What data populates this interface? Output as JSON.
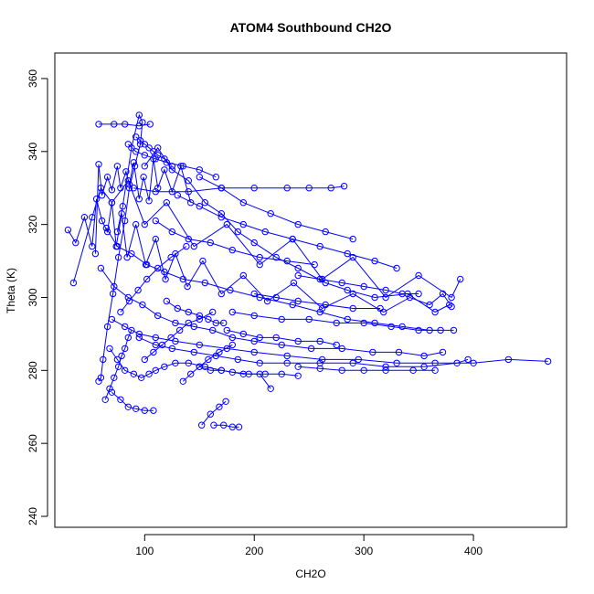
{
  "chart_data": {
    "type": "line",
    "title": "ATOM4 Southbound CH2O",
    "xlabel": "CH2O",
    "ylabel": "Theta (K)",
    "xlim": [
      18,
      485
    ],
    "ylim": [
      237,
      367
    ],
    "x_ticks": [
      100,
      200,
      300,
      400
    ],
    "y_ticks": [
      240,
      260,
      280,
      300,
      320,
      340,
      360
    ],
    "x_tick_labels": [
      "100",
      "200",
      "300",
      "400"
    ],
    "y_tick_labels": [
      "240",
      "260",
      "280",
      "300",
      "320",
      "340",
      "360"
    ],
    "grid": false,
    "legend": "none",
    "series_color": "#0000ff",
    "marker": "open-circle",
    "series": [
      {
        "x": [
          30,
          37,
          45,
          52,
          56,
          61,
          66,
          70,
          74,
          79,
          84,
          92,
          101,
          110,
          119,
          128,
          139,
          153,
          170,
          190,
          212,
          236,
          262,
          290,
          318,
          342,
          360,
          372,
          380
        ],
        "y": [
          318.5,
          315,
          322,
          314,
          327,
          321,
          318,
          326,
          314,
          323,
          311,
          320,
          309,
          316,
          305,
          312,
          303,
          310,
          301,
          306,
          299,
          304,
          297,
          301,
          296,
          300,
          298,
          301,
          297.5
        ]
      },
      {
        "x": [
          35,
          52,
          60,
          70,
          85,
          100,
          120,
          145,
          175,
          205,
          235,
          262,
          290,
          320,
          350,
          380,
          388
        ],
        "y": [
          304,
          322,
          330,
          326,
          332,
          320,
          326,
          314,
          320,
          309,
          316,
          305,
          311,
          300,
          306,
          300,
          305
        ]
      },
      {
        "x": [
          55,
          58,
          61,
          66,
          70,
          75,
          78,
          83,
          86,
          90,
          95,
          99,
          104,
          108,
          112,
          118,
          125,
          133,
          142
        ],
        "y": [
          312,
          336.5,
          328,
          333,
          329.5,
          336,
          330,
          334.5,
          331,
          337,
          327,
          333,
          326.5,
          338,
          330,
          335,
          329,
          336,
          326
        ]
      },
      {
        "x": [
          58,
          72,
          82,
          95,
          105
        ],
        "y": [
          347.5,
          347.5,
          347.5,
          347,
          347.5
        ]
      },
      {
        "x": [
          75,
          80,
          88,
          95,
          98,
          96,
          91,
          86,
          82,
          76,
          71,
          66,
          62,
          60,
          58
        ],
        "y": [
          318,
          325,
          341,
          350,
          348,
          342,
          336,
          330,
          321,
          311,
          301,
          292,
          283,
          278,
          277
        ]
      },
      {
        "x": [
          100,
          112,
          125,
          140,
          155,
          170,
          185,
          200,
          220,
          240,
          265,
          285,
          310,
          340,
          365,
          378
        ],
        "y": [
          336,
          341,
          335,
          332,
          326,
          323,
          318,
          315,
          311,
          308,
          304,
          302,
          300,
          301,
          296,
          298
        ]
      },
      {
        "x": [
          90,
          110,
          140,
          170,
          200,
          230,
          250,
          270,
          282
        ],
        "y": [
          330,
          329,
          329,
          330,
          330,
          330,
          330,
          330,
          330.5
        ]
      },
      {
        "x": [
          65,
          75,
          88,
          102,
          118,
          135,
          155,
          178,
          205,
          235,
          260,
          285,
          310,
          335,
          360,
          382
        ],
        "y": [
          319,
          314,
          312,
          309,
          307,
          305,
          304,
          302,
          300,
          298,
          296,
          294,
          293,
          292,
          291,
          291
        ]
      },
      {
        "x": [
          60,
          72,
          85,
          98,
          112,
          128,
          145,
          162,
          180,
          200,
          225,
          252,
          280,
          308,
          332,
          355,
          372
        ],
        "y": [
          308,
          303,
          300,
          298,
          295,
          293,
          292,
          291,
          289,
          288,
          287,
          286,
          286,
          285,
          285,
          284,
          285
        ]
      },
      {
        "x": [
          70,
          82,
          95,
          110,
          128,
          150,
          175,
          200,
          230,
          262,
          295,
          330,
          365,
          400,
          432,
          468
        ],
        "y": [
          294,
          292,
          290,
          289,
          288,
          287,
          286,
          285,
          284,
          283,
          283,
          282,
          282,
          282,
          283,
          282.5
        ]
      },
      {
        "x": [
          95,
          110,
          125,
          145,
          165,
          185,
          205,
          230,
          260,
          290,
          320,
          355,
          385,
          395
        ],
        "y": [
          289,
          287,
          286,
          285,
          284,
          283,
          282,
          282,
          282,
          282,
          281,
          281,
          282,
          283
        ]
      },
      {
        "x": [
          68,
          75,
          82,
          90,
          97,
          104,
          110,
          118,
          128,
          140,
          155,
          170,
          190,
          205,
          215
        ],
        "y": [
          286,
          283,
          280,
          279,
          278,
          279,
          280,
          281,
          282,
          282,
          281,
          280,
          279,
          279,
          275
        ]
      },
      {
        "x": [
          70,
          78,
          85,
          92,
          100,
          108
        ],
        "y": [
          274,
          272,
          270,
          269.5,
          269,
          269
        ]
      },
      {
        "x": [
          64,
          68,
          72,
          76,
          79,
          82,
          85,
          88
        ],
        "y": [
          272,
          275,
          278,
          281,
          284,
          286,
          289,
          291
        ]
      },
      {
        "x": [
          152,
          160,
          168,
          174
        ],
        "y": [
          265,
          268,
          270,
          271.5
        ]
      },
      {
        "x": [
          163,
          172,
          180,
          186
        ],
        "y": [
          265,
          265,
          264.5,
          264.5
        ]
      },
      {
        "x": [
          150,
          160,
          170,
          180,
          195,
          210,
          225,
          240
        ],
        "y": [
          281,
          280,
          280,
          279.5,
          279,
          279,
          279,
          278.5
        ]
      },
      {
        "x": [
          240,
          260,
          280,
          300,
          320,
          345,
          365
        ],
        "y": [
          281,
          280.5,
          280,
          280,
          280,
          280,
          280
        ]
      },
      {
        "x": [
          120,
          130,
          140,
          150,
          158,
          165,
          172
        ],
        "y": [
          299,
          297,
          296,
          295,
          294,
          293,
          293
        ]
      },
      {
        "x": [
          175,
          190,
          205,
          220,
          240,
          260,
          275
        ],
        "y": [
          291,
          290,
          289,
          289,
          288,
          288,
          287
        ]
      },
      {
        "x": [
          180,
          200,
          225,
          250,
          275,
          300,
          325,
          350,
          370
        ],
        "y": [
          296,
          295,
          294,
          294,
          293,
          293,
          292,
          291,
          291
        ]
      },
      {
        "x": [
          200,
          220,
          240,
          265,
          290,
          315
        ],
        "y": [
          301,
          300,
          299,
          298,
          297,
          297
        ]
      },
      {
        "x": [
          240,
          260,
          280,
          300,
          320,
          335,
          350
        ],
        "y": [
          306,
          305,
          304,
          303,
          302,
          301,
          301
        ]
      },
      {
        "x": [
          110,
          125,
          140,
          160,
          180,
          205,
          230,
          255
        ],
        "y": [
          321,
          318,
          316,
          315,
          313,
          311,
          310,
          309
        ]
      },
      {
        "x": [
          130,
          150,
          170,
          190,
          210,
          235,
          260,
          285,
          310,
          330
        ],
        "y": [
          328,
          325,
          322,
          320,
          318,
          316,
          314,
          312,
          310,
          308
        ]
      },
      {
        "x": [
          150,
          170,
          190,
          215,
          240,
          265,
          290
        ],
        "y": [
          333,
          330,
          326,
          323,
          320,
          318,
          316
        ]
      },
      {
        "x": [
          85,
          92,
          100,
          110,
          120,
          135,
          150,
          165
        ],
        "y": [
          342,
          340,
          339,
          338,
          337,
          336,
          335,
          333
        ]
      },
      {
        "x": [
          92,
          96,
          100,
          104,
          108,
          112,
          118,
          125
        ],
        "y": [
          344,
          343,
          342,
          341,
          340,
          339,
          338,
          336
        ]
      },
      {
        "x": [
          78,
          86,
          94,
          102,
          112,
          124,
          138
        ],
        "y": [
          296,
          299,
          302,
          305,
          308,
          311,
          314
        ]
      },
      {
        "x": [
          100,
          108,
          116,
          124,
          132,
          140,
          150,
          162
        ],
        "y": [
          283,
          285,
          287,
          289,
          291,
          293,
          294,
          296
        ]
      },
      {
        "x": [
          135,
          142,
          150,
          158,
          168,
          180
        ],
        "y": [
          277,
          279,
          281,
          283,
          285,
          287
        ]
      }
    ]
  }
}
